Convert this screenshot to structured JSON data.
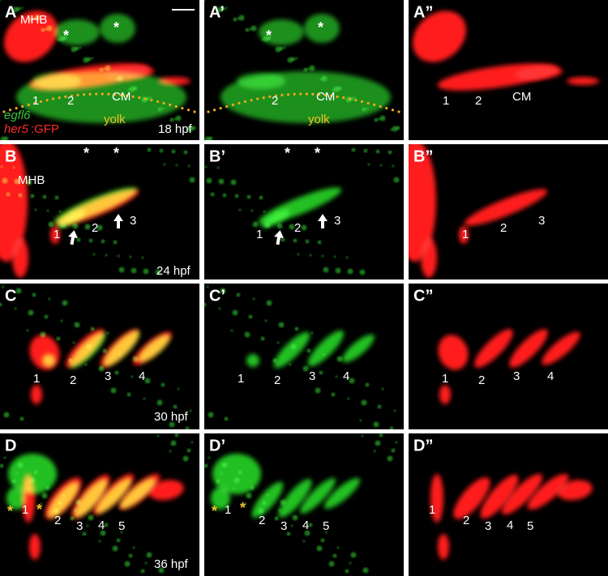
{
  "panels": [
    {
      "label": "A",
      "annotations": [
        "MHB",
        "*",
        "*",
        "1",
        "2",
        "CM",
        "yolk",
        "egfl6",
        "her5",
        ":GFP",
        "18 hpf"
      ]
    },
    {
      "label": "A’",
      "annotations": [
        "*",
        "*",
        "2",
        "CM",
        "yolk"
      ]
    },
    {
      "label": "A”",
      "annotations": [
        "1",
        "2",
        "CM"
      ]
    },
    {
      "label": "B",
      "annotations": [
        "MHB",
        "*",
        "*",
        "1",
        "2",
        "3",
        "24 hpf"
      ]
    },
    {
      "label": "B’",
      "annotations": [
        "*",
        "*",
        "1",
        "2",
        "3"
      ]
    },
    {
      "label": "B”",
      "annotations": [
        "1",
        "2",
        "3"
      ]
    },
    {
      "label": "C",
      "annotations": [
        "1",
        "2",
        "3",
        "4",
        "30 hpf"
      ]
    },
    {
      "label": "C’",
      "annotations": [
        "1",
        "2",
        "3",
        "4"
      ]
    },
    {
      "label": "C”",
      "annotations": [
        "1",
        "2",
        "3",
        "4"
      ]
    },
    {
      "label": "D",
      "annotations": [
        "*",
        "1",
        "*",
        "2",
        "3",
        "4",
        "5",
        "36 hpf"
      ]
    },
    {
      "label": "D’",
      "annotations": [
        "*",
        "1",
        "*",
        "2",
        "3",
        "4",
        "5"
      ]
    },
    {
      "label": "D”",
      "annotations": [
        "1",
        "2",
        "3",
        "4",
        "5"
      ]
    }
  ]
}
